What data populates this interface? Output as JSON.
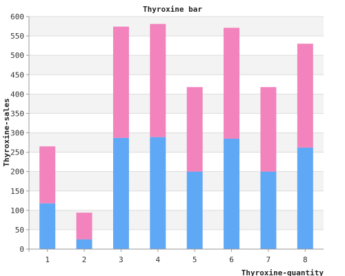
{
  "chart_data": {
    "type": "bar",
    "stacked": true,
    "title": "Thyroxine bar",
    "xlabel": "Thyroxine-quantity",
    "ylabel": "Thyroxine-sales",
    "categories": [
      "1",
      "2",
      "3",
      "4",
      "5",
      "6",
      "7",
      "8"
    ],
    "ylim": [
      0,
      600
    ],
    "yticks": [
      0,
      50,
      100,
      150,
      200,
      250,
      300,
      350,
      400,
      450,
      500,
      550,
      600
    ],
    "grid": true,
    "series": [
      {
        "values": [
          118,
          25,
          287,
          289,
          200,
          285,
          200,
          262
        ],
        "color": "#5fa8f5"
      },
      {
        "values": [
          147,
          69,
          287,
          292,
          218,
          286,
          218,
          268
        ],
        "color": "#f283bd"
      }
    ]
  }
}
